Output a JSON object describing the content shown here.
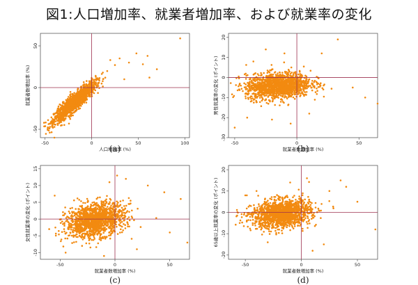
{
  "title": "図1:人口増加率、就業者増加率、および就業率の変化",
  "colors": {
    "points": "#f28a10",
    "reference_lines": "#9c2f4e",
    "frame": "#444444"
  },
  "chart_data": [
    {
      "type": "scatter",
      "panel_label": "(a)",
      "xlabel": "人口増加率 (%)",
      "ylabel": "就業者数増加率 (%)",
      "xlim": [
        -55,
        105
      ],
      "ylim": [
        -60,
        65
      ],
      "xticks": [
        -50,
        0,
        50,
        100
      ],
      "yticks": [
        -50,
        0,
        50
      ],
      "reference_lines": {
        "x": 0,
        "y": 0
      },
      "cloud": {
        "x_center": -18,
        "x_spread": 11,
        "slope": 0.95,
        "intercept": 0,
        "y_noise": 5,
        "count": 1500
      },
      "points": [
        [
          95,
          59
        ],
        [
          60,
          38
        ],
        [
          48,
          41
        ],
        [
          40,
          30
        ],
        [
          30,
          35
        ],
        [
          25,
          27
        ],
        [
          20,
          33
        ],
        [
          12,
          18
        ],
        [
          -45,
          -54
        ],
        [
          -40,
          -60
        ],
        [
          -42,
          -46
        ],
        [
          55,
          28
        ],
        [
          70,
          22
        ],
        [
          35,
          10
        ],
        [
          62,
          12
        ]
      ]
    },
    {
      "type": "scatter",
      "panel_label": "(b)",
      "xlabel": "就業者数増加率 (%)",
      "ylabel": "男性就業率の変化 (ポイント)",
      "xlim": [
        -55,
        65
      ],
      "ylim": [
        -30,
        22
      ],
      "xticks": [
        -50,
        0,
        50
      ],
      "yticks": [
        -30,
        -20,
        -10,
        0,
        10,
        20
      ],
      "reference_lines": {
        "x": 0,
        "y": 0
      },
      "cloud": {
        "x_center": -15,
        "x_spread": 13,
        "slope": 0.04,
        "intercept": -3.5,
        "y_noise": 3.2,
        "count": 1500
      },
      "points": [
        [
          33,
          19
        ],
        [
          65,
          -13
        ],
        [
          -50,
          -25
        ],
        [
          -40,
          -20
        ],
        [
          -10,
          12
        ],
        [
          -20,
          -21
        ],
        [
          45,
          -5
        ],
        [
          55,
          -10
        ],
        [
          -35,
          8
        ],
        [
          20,
          12
        ],
        [
          -25,
          14
        ],
        [
          10,
          -18
        ],
        [
          -5,
          -23
        ]
      ]
    },
    {
      "type": "scatter",
      "panel_label": "(c)",
      "xlabel": "就業者数増加率 (%)",
      "ylabel": "女性就業率の変化 (ポイント)",
      "xlim": [
        -68,
        68
      ],
      "ylim": [
        -12,
        16
      ],
      "xticks": [
        -50,
        0,
        50
      ],
      "yticks": [
        -10,
        -5,
        0,
        5,
        10,
        15
      ],
      "reference_lines": {
        "x": 0,
        "y": 0
      },
      "cloud": {
        "x_center": -18,
        "x_spread": 13,
        "slope": 0.05,
        "intercept": 0.6,
        "y_noise": 2.4,
        "count": 1500
      },
      "points": [
        [
          2,
          13
        ],
        [
          -5,
          11
        ],
        [
          60,
          6
        ],
        [
          66,
          -7
        ],
        [
          -45,
          -10
        ],
        [
          -10,
          -11
        ],
        [
          30,
          10
        ],
        [
          45,
          8
        ],
        [
          -55,
          7
        ],
        [
          -60,
          -3
        ],
        [
          -30,
          -8
        ],
        [
          20,
          -9
        ],
        [
          10,
          12
        ],
        [
          50,
          -4
        ]
      ]
    },
    {
      "type": "scatter",
      "panel_label": "(d)",
      "xlabel": "就業者数増加率 (%)",
      "ylabel": "65歳以上就業率の変化 (ポイント)",
      "xlim": [
        -65,
        68
      ],
      "ylim": [
        -22,
        22
      ],
      "xticks": [
        -50,
        0,
        50
      ],
      "yticks": [
        -20,
        -10,
        0,
        10,
        20
      ],
      "reference_lines": {
        "x": 0,
        "y": 0
      },
      "cloud": {
        "x_center": -18,
        "x_spread": 13,
        "slope": 0.05,
        "intercept": 0.2,
        "y_noise": 3.2,
        "count": 1500
      },
      "points": [
        [
          35,
          15
        ],
        [
          40,
          12
        ],
        [
          66,
          -8
        ],
        [
          -55,
          -5
        ],
        [
          -50,
          8
        ],
        [
          20,
          -15
        ],
        [
          10,
          -18
        ],
        [
          -10,
          14
        ],
        [
          50,
          5
        ],
        [
          -30,
          -14
        ],
        [
          5,
          16
        ],
        [
          25,
          10
        ],
        [
          -40,
          10
        ]
      ]
    }
  ]
}
